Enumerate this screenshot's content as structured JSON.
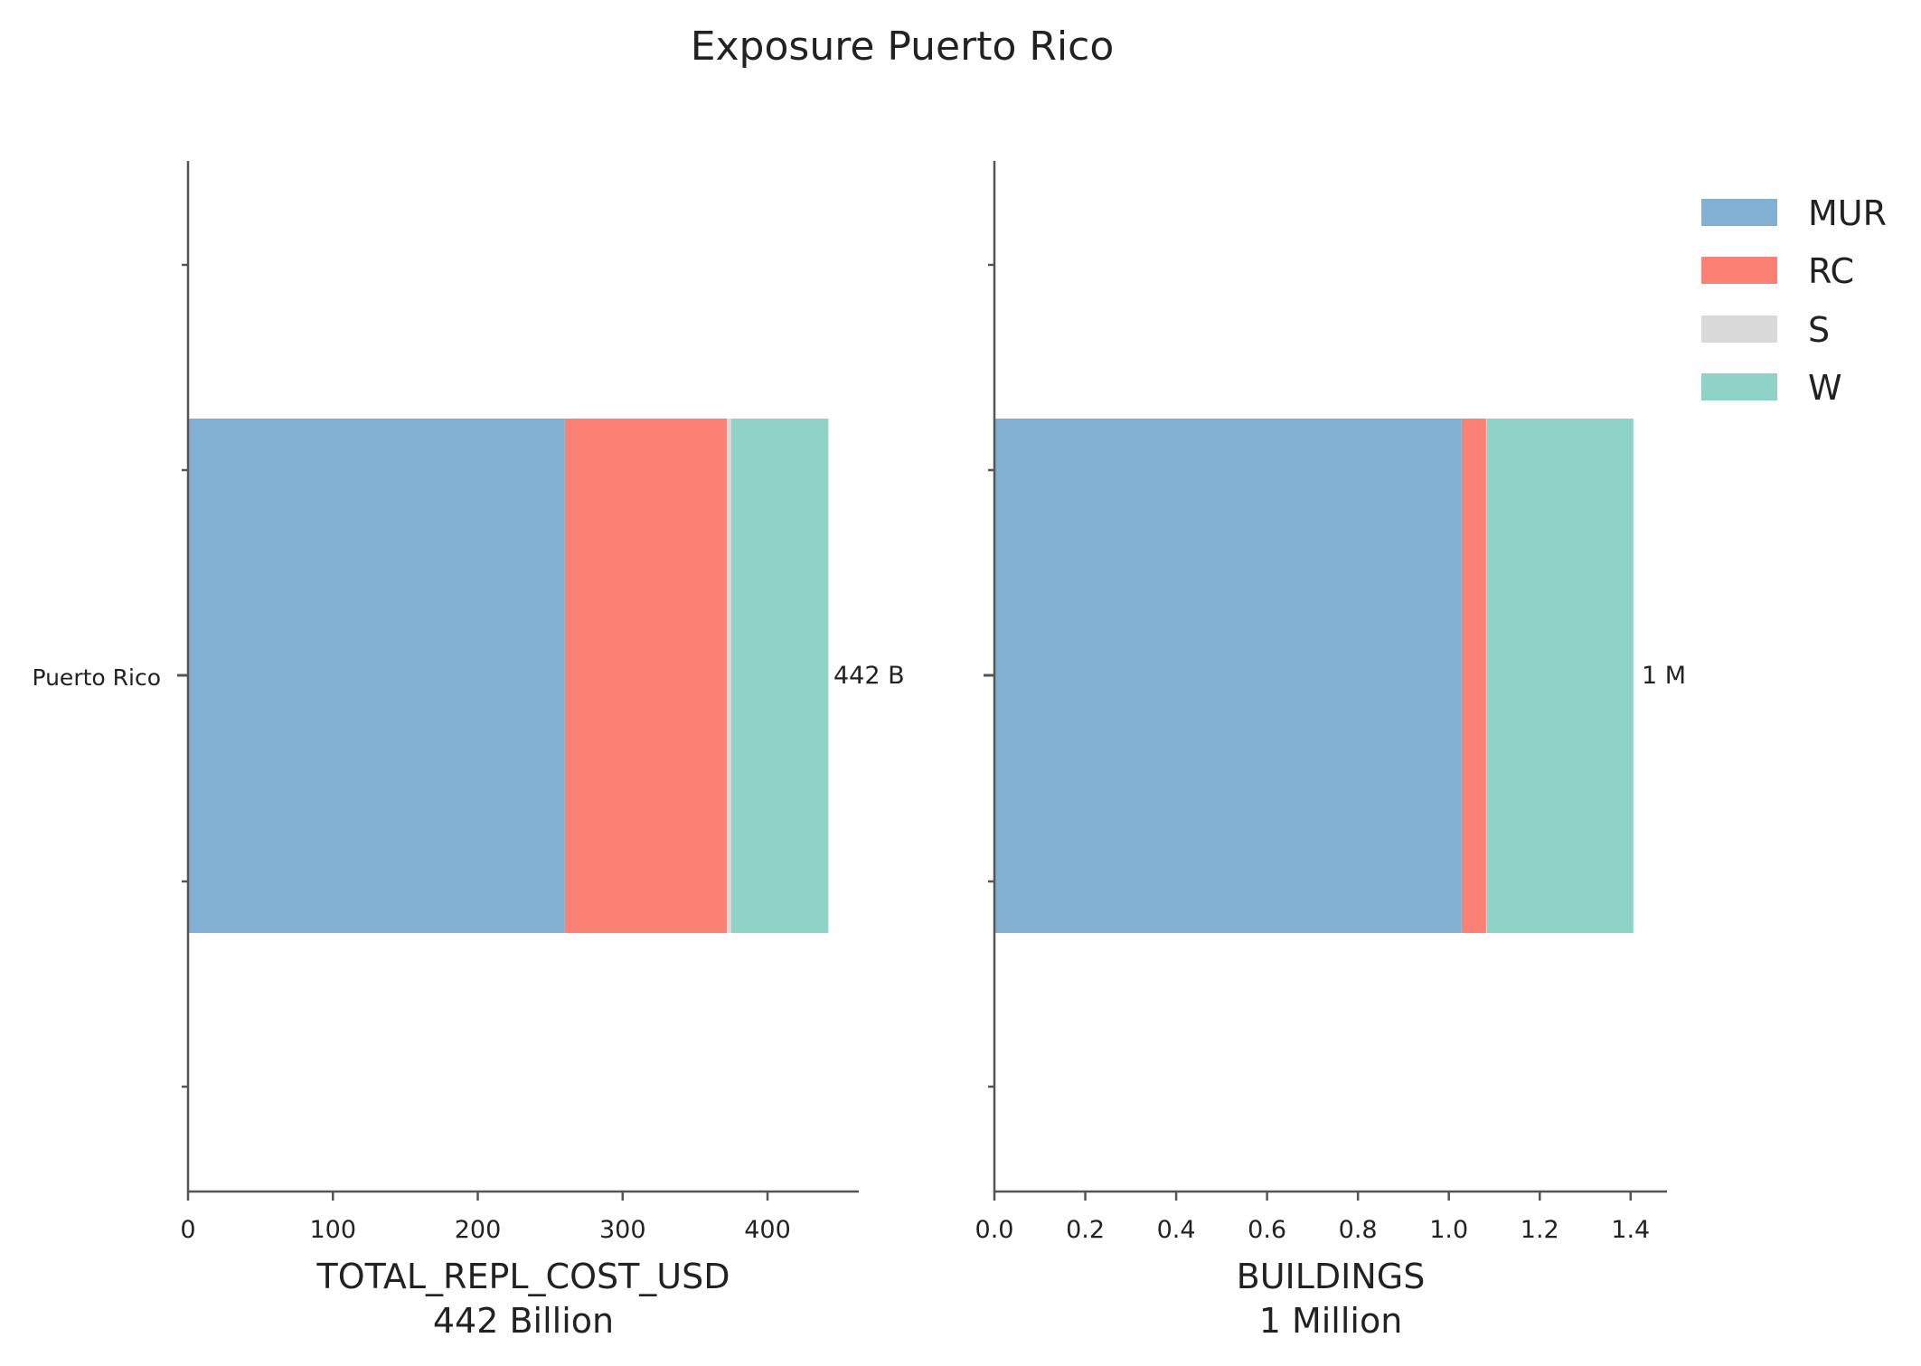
{
  "title": "Exposure Puerto Rico",
  "colors": {
    "MUR": "#81b0d2",
    "RC": "#fa8173",
    "S": "#d9d9d9",
    "W": "#8ed3c6",
    "axis": "#555555",
    "text": "#222222"
  },
  "legend": {
    "placement": "upper-right",
    "items": [
      {
        "label": "MUR",
        "color": "#81b0d2"
      },
      {
        "label": "RC",
        "color": "#fa8173"
      },
      {
        "label": "S",
        "color": "#d9d9d9"
      },
      {
        "label": "W",
        "color": "#8ed3c6"
      }
    ]
  },
  "chart_data": [
    {
      "type": "bar",
      "orientation": "horizontal",
      "stacked": true,
      "categories": [
        "Puerto Rico"
      ],
      "series": [
        {
          "name": "MUR",
          "values": [
            260
          ]
        },
        {
          "name": "RC",
          "values": [
            112
          ]
        },
        {
          "name": "S",
          "values": [
            3
          ]
        },
        {
          "name": "W",
          "values": [
            67
          ]
        }
      ],
      "xlim": [
        0,
        463
      ],
      "xticks": [
        0,
        100,
        200,
        300,
        400
      ],
      "xtick_labels": [
        "0",
        "100",
        "200",
        "300",
        "400"
      ],
      "xlabel": "TOTAL_REPL_COST_USD",
      "xlabel_sub": "442 Billion",
      "total_label": "442 B",
      "grid": false
    },
    {
      "type": "bar",
      "orientation": "horizontal",
      "stacked": true,
      "categories": [
        "Puerto Rico"
      ],
      "series": [
        {
          "name": "MUR",
          "values": [
            1.028
          ]
        },
        {
          "name": "RC",
          "values": [
            0.054
          ]
        },
        {
          "name": "S",
          "values": [
            0.002
          ]
        },
        {
          "name": "W",
          "values": [
            0.322
          ]
        }
      ],
      "xlim": [
        0,
        1.48
      ],
      "xticks": [
        0,
        0.2,
        0.4,
        0.6,
        0.8,
        1.0,
        1.2,
        1.4
      ],
      "xtick_labels": [
        "0.0",
        "0.2",
        "0.4",
        "0.6",
        "0.8",
        "1.0",
        "1.2",
        "1.4"
      ],
      "xlabel": "BUILDINGS",
      "xlabel_sub": "1 Million",
      "total_label": "1 M",
      "grid": false
    }
  ]
}
